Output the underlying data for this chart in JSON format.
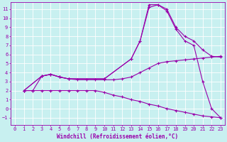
{
  "background_color": "#c8f0f0",
  "grid_color": "#ffffff",
  "line_color": "#9900aa",
  "marker": "+",
  "markersize": 3,
  "linewidth": 0.8,
  "xlabel": "Windchill (Refroidissement éolien,°C)",
  "xlabel_fontsize": 5.5,
  "tick_fontsize": 5,
  "xlim": [
    -0.5,
    23.5
  ],
  "ylim": [
    -1.8,
    11.8
  ],
  "yticks": [
    -1,
    0,
    1,
    2,
    3,
    4,
    5,
    6,
    7,
    8,
    9,
    10,
    11
  ],
  "xticks": [
    0,
    1,
    2,
    3,
    4,
    5,
    6,
    7,
    8,
    9,
    10,
    11,
    12,
    13,
    14,
    15,
    16,
    17,
    18,
    19,
    20,
    21,
    22,
    23
  ],
  "lines": [
    {
      "x": [
        1,
        2,
        3,
        4,
        5,
        6,
        7,
        8,
        9,
        10,
        11,
        12,
        13,
        14,
        15,
        16,
        17,
        18,
        19,
        20,
        21,
        22,
        23
      ],
      "y": [
        2.0,
        2.0,
        2.0,
        2.0,
        2.0,
        2.0,
        2.0,
        2.0,
        2.0,
        1.8,
        1.5,
        1.3,
        1.0,
        0.8,
        0.5,
        0.3,
        0.0,
        -0.2,
        -0.4,
        -0.6,
        -0.8,
        -0.9,
        -1.0
      ]
    },
    {
      "x": [
        1,
        2,
        3,
        4,
        5,
        6,
        7,
        8,
        9,
        10,
        11,
        12,
        13,
        14,
        15,
        16,
        17,
        18,
        19,
        20,
        21,
        22,
        23
      ],
      "y": [
        2.0,
        2.0,
        3.6,
        3.8,
        3.5,
        3.3,
        3.2,
        3.2,
        3.2,
        3.2,
        3.2,
        3.3,
        3.5,
        4.0,
        4.5,
        5.0,
        5.2,
        5.3,
        5.4,
        5.5,
        5.6,
        5.7,
        5.8
      ]
    },
    {
      "x": [
        1,
        3,
        4,
        5,
        6,
        10,
        13,
        14,
        15,
        16,
        17,
        18,
        19,
        20,
        21,
        22,
        23
      ],
      "y": [
        2.0,
        3.6,
        3.8,
        3.5,
        3.3,
        3.3,
        5.5,
        7.5,
        11.2,
        11.5,
        11.0,
        9.0,
        8.0,
        7.5,
        6.5,
        5.8,
        5.7
      ]
    },
    {
      "x": [
        1,
        3,
        4,
        5,
        6,
        10,
        13,
        14,
        15,
        16,
        17,
        18,
        19,
        20,
        21,
        22,
        23
      ],
      "y": [
        2.0,
        3.6,
        3.8,
        3.5,
        3.3,
        3.3,
        5.5,
        7.5,
        11.5,
        11.5,
        10.8,
        8.8,
        7.5,
        7.0,
        3.0,
        0.0,
        -1.0
      ]
    }
  ]
}
